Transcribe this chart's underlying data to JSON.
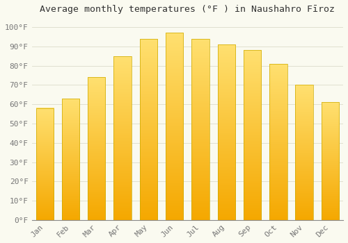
{
  "title": "Average monthly temperatures (°F ) in Naushahro Fīroz",
  "months": [
    "Jan",
    "Feb",
    "Mar",
    "Apr",
    "May",
    "Jun",
    "Jul",
    "Aug",
    "Sep",
    "Oct",
    "Nov",
    "Dec"
  ],
  "values": [
    58,
    63,
    74,
    85,
    94,
    97,
    94,
    91,
    88,
    81,
    70,
    61
  ],
  "bar_color_bottom": "#F5A800",
  "bar_color_top": "#FFE070",
  "bar_edge_color": "#CCAA00",
  "background_color": "#FAFAF0",
  "grid_color": "#E0E0D0",
  "ytick_labels": [
    "0°F",
    "10°F",
    "20°F",
    "30°F",
    "40°F",
    "50°F",
    "60°F",
    "70°F",
    "80°F",
    "90°F",
    "100°F"
  ],
  "ytick_values": [
    0,
    10,
    20,
    30,
    40,
    50,
    60,
    70,
    80,
    90,
    100
  ],
  "ylim": [
    0,
    105
  ],
  "title_fontsize": 9.5,
  "tick_fontsize": 8,
  "font_family": "monospace"
}
